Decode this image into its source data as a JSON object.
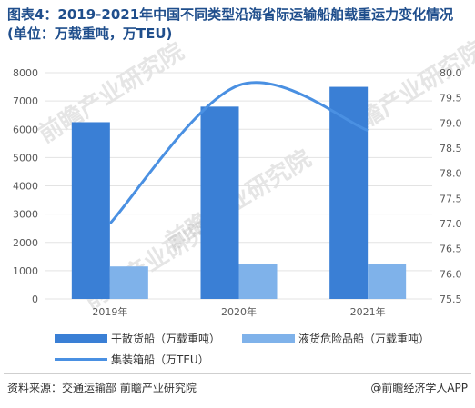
{
  "title": "图表4：2019-2021年中国不同类型沿海省际运输船舶载重运力变化情况(单位：万载重吨，万TEU)",
  "source": "资料来源：交通运输部 前瞻产业研究院",
  "credit": "@前瞻经济学人APP",
  "watermark": "前瞻产业研究院",
  "colors": {
    "bar1": "#3a7fd5",
    "bar2": "#7fb2ea",
    "line": "#4a90e2",
    "grid": "#e3e3e3",
    "axis_text": "#595959"
  },
  "chart_data": {
    "type": "bar",
    "categories": [
      "2019年",
      "2020年",
      "2021年"
    ],
    "series": [
      {
        "name": "干散货船（万载重吨）",
        "values": [
          6250,
          6800,
          7500
        ],
        "axis": "left",
        "kind": "bar"
      },
      {
        "name": "液货危险品船（万载重吨）",
        "values": [
          1150,
          1250,
          1250
        ],
        "axis": "left",
        "kind": "bar"
      },
      {
        "name": "集装箱船（万TEU）",
        "values": [
          77.0,
          79.75,
          78.85
        ],
        "axis": "right",
        "kind": "line"
      }
    ],
    "ylim_left": [
      0,
      8000
    ],
    "yticks_left": [
      "0",
      "1000",
      "2000",
      "3000",
      "4000",
      "5000",
      "6000",
      "7000",
      "8000"
    ],
    "ylim_right": [
      75.5,
      80.0
    ],
    "yticks_right": [
      "75.5",
      "76.0",
      "76.5",
      "77.0",
      "77.5",
      "78.0",
      "78.5",
      "79.0",
      "79.5",
      "80.0"
    ],
    "grid": true,
    "legend_position": "bottom"
  }
}
